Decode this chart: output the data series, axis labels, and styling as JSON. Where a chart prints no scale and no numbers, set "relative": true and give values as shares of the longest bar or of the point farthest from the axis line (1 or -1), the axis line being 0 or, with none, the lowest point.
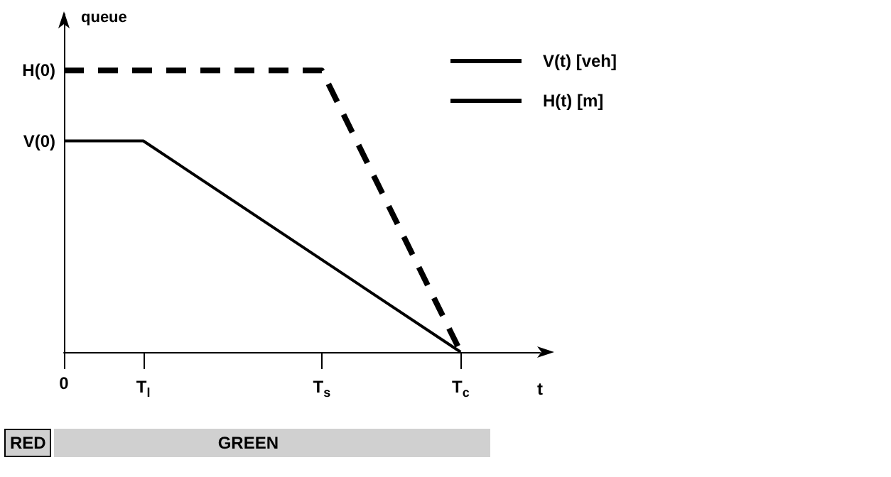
{
  "chart_data": {
    "type": "line",
    "relative": true,
    "ylabel": "queue",
    "xlabel": "t",
    "categories": [
      "0",
      null,
      null,
      null,
      "T$_{l}$",
      null,
      null,
      null,
      null,
      null,
      null,
      null,
      null,
      "T$_{s}$",
      null,
      null,
      null,
      null,
      null,
      null,
      "T$_{c}$",
      null,
      null,
      null,
      null
    ],
    "series": [
      {
        "name": "V(t) [veh]",
        "color": "#000000",
        "line_style": "solid",
        "values": [
          0.75,
          null,
          null,
          null,
          0.75,
          null,
          null,
          null,
          null,
          null,
          null,
          null,
          null,
          null,
          null,
          null,
          null,
          null,
          null,
          null,
          0,
          null,
          null,
          null,
          null
        ]
      },
      {
        "name": "H(t) [m]",
        "color": "#000000",
        "line_style": "dashed",
        "values": [
          1,
          null,
          null,
          null,
          null,
          null,
          null,
          null,
          null,
          null,
          null,
          null,
          null,
          1,
          null,
          null,
          null,
          null,
          null,
          null,
          0,
          null,
          null,
          null,
          null
        ]
      }
    ],
    "annotations": [
      {
        "text": "H(0)",
        "x": "0",
        "y": 1
      },
      {
        "text": "V(0)",
        "x": "0",
        "y": 0.75
      },
      "RED",
      "GREEN"
    ],
    "legend": "top right",
    "grid": false,
    "marker": "none"
  }
}
